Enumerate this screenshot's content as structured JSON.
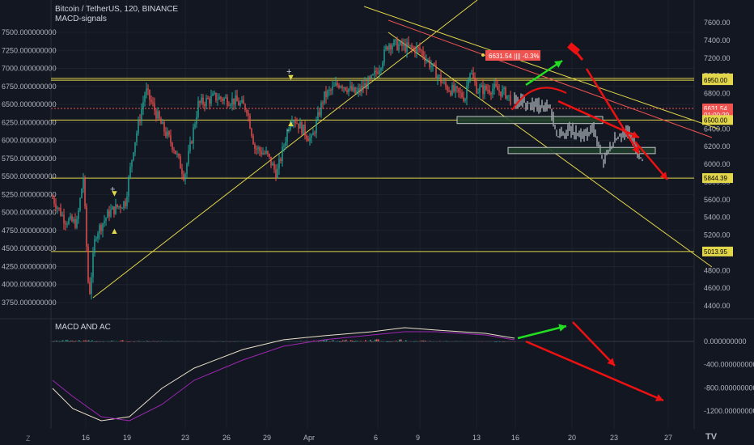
{
  "header": {
    "title": "Bitcoin / TetherUS, 120, BINANCE",
    "indicator": "MACD-signals"
  },
  "macd_panel": {
    "label": "MACD AND AC"
  },
  "footer": {
    "tz_icon": "Z",
    "logo": "tv-logo"
  },
  "colors": {
    "bg": "#131722",
    "up": "#26a69a",
    "down": "#ef5350",
    "grid": "#1e222d",
    "level": "#e2d64a",
    "resistance": "#ef5350",
    "arrow_green": "#22dd22",
    "arrow_red": "#ee1111",
    "projection": "#9aa0a6",
    "macd_line": "#e8e0c8",
    "signal_line": "#9c27b0"
  },
  "chart_data": [
    {
      "type": "candlestick",
      "title": "Bitcoin / TetherUS, 120, BINANCE",
      "left_axis_ticks": [
        "7500.000000000",
        "7250.000000000",
        "7000.000000000",
        "6750.000000000",
        "6500.000000000",
        "6250.000000000",
        "6000.000000000",
        "5750.000000000",
        "5500.000000000",
        "5250.000000000",
        "5000.000000000",
        "4750.000000000",
        "4500.000000000",
        "4250.000000000",
        "4000.000000000",
        "3750.000000000"
      ],
      "right_axis_ticks": [
        "7600.00",
        "7400.00",
        "7200.00",
        "7000.00",
        "6800.00",
        "6600.00",
        "6400.00",
        "6200.00",
        "6000.00",
        "5800.00",
        "5600.00",
        "5400.00",
        "5200.00",
        "5000.00",
        "4800.00",
        "4600.00",
        "4400.00"
      ],
      "x_ticks": [
        "16",
        "19",
        "23",
        "26",
        "29",
        "Apr",
        "6",
        "9",
        "13",
        "16",
        "20",
        "23",
        "27"
      ],
      "price_labels": [
        {
          "text": "6970.81",
          "price": 6970,
          "color": "#e2d64a"
        },
        {
          "text": "6950.00",
          "price": 6950,
          "color": "#e2d64a"
        },
        {
          "text": "6631.54",
          "price": 6631,
          "color": "#ef5350"
        },
        {
          "text": "01:00:29",
          "price": 6560,
          "color": "#ef5350"
        },
        {
          "text": "6500.00",
          "price": 6500,
          "color": "#e2d64a"
        },
        {
          "text": "5844.39",
          "price": 5844,
          "color": "#e2d64a"
        },
        {
          "text": "5013.95",
          "price": 5014,
          "color": "#e2d64a"
        }
      ],
      "horizontal_levels": [
        6950,
        6970,
        6500,
        5844,
        5014
      ],
      "current_price_line": 6631,
      "current_label": "6631.54 |||| -0.3%",
      "markers": [
        {
          "symbol": "+",
          "x": "17.5",
          "price": 5330,
          "color": "#d1d4dc"
        },
        {
          "symbol": "▼",
          "x": "17.5",
          "price": 5270,
          "color": "#e2d64a"
        },
        {
          "symbol": "▲",
          "x": "17.5",
          "price": 4750,
          "color": "#e2d64a"
        },
        {
          "symbol": "+",
          "x": "30.5",
          "price": 6960,
          "color": "#d1d4dc"
        },
        {
          "symbol": "▼",
          "x": "30.5",
          "price": 6880,
          "color": "#e2d64a"
        },
        {
          "symbol": "▲",
          "x": "30.5",
          "price": 6240,
          "color": "#e2d64a"
        },
        {
          "symbol": "-",
          "x": "30.5",
          "price": 6150,
          "color": "#d1d4dc"
        }
      ],
      "boxes": [
        {
          "from": "13",
          "to": "23",
          "top": 6540,
          "bottom": 6460,
          "color": "#2e5e3e"
        },
        {
          "from": "15",
          "to": "24",
          "top": 6190,
          "bottom": 6120,
          "color": "#2e5e3e"
        }
      ]
    },
    {
      "type": "line",
      "title": "MACD AND AC",
      "right_axis_ticks": [
        "0.000000000",
        "-400.000000000",
        "-800.000000000",
        "-1200.000000000"
      ],
      "ylim": [
        -1350,
        220
      ],
      "series": [],
      "histogram": "mixed green/red bars"
    }
  ]
}
